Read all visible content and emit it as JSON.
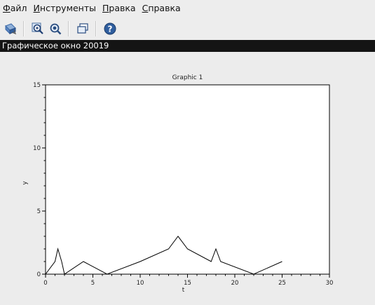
{
  "menu": {
    "items": [
      {
        "mnemonic": "Ф",
        "rest": "айл"
      },
      {
        "mnemonic": "И",
        "rest": "нструменты"
      },
      {
        "mnemonic": "П",
        "rest": "равка"
      },
      {
        "mnemonic": "С",
        "rest": "правка"
      }
    ]
  },
  "toolbar": {
    "icons": [
      "rotate-icon",
      "zoom-in-icon",
      "zoom-fit-icon",
      "datatip-icon",
      "help-icon"
    ]
  },
  "window": {
    "title": "Графическое окно 20019"
  },
  "colors": {
    "titlebar_bg": "#141414",
    "plot_line": "#000000",
    "axes_bg": "#ffffff"
  },
  "chart_data": {
    "type": "line",
    "title": "Graphic 1",
    "xlabel": "t",
    "ylabel": "y",
    "xlim": [
      0,
      30
    ],
    "ylim": [
      0,
      15
    ],
    "xticks": [
      0,
      5,
      10,
      15,
      20,
      25,
      30
    ],
    "yticks": [
      0,
      5,
      10,
      15
    ],
    "grid": false,
    "series": [
      {
        "x": [
          0,
          1,
          1.3,
          1.7,
          2,
          4,
          6.5,
          10,
          13,
          14,
          15,
          17.5,
          18,
          18.5,
          22,
          25
        ],
        "y": [
          0,
          1,
          2,
          1,
          0,
          1,
          0,
          1,
          2,
          3,
          2,
          1,
          2,
          1,
          0,
          1
        ]
      }
    ]
  }
}
